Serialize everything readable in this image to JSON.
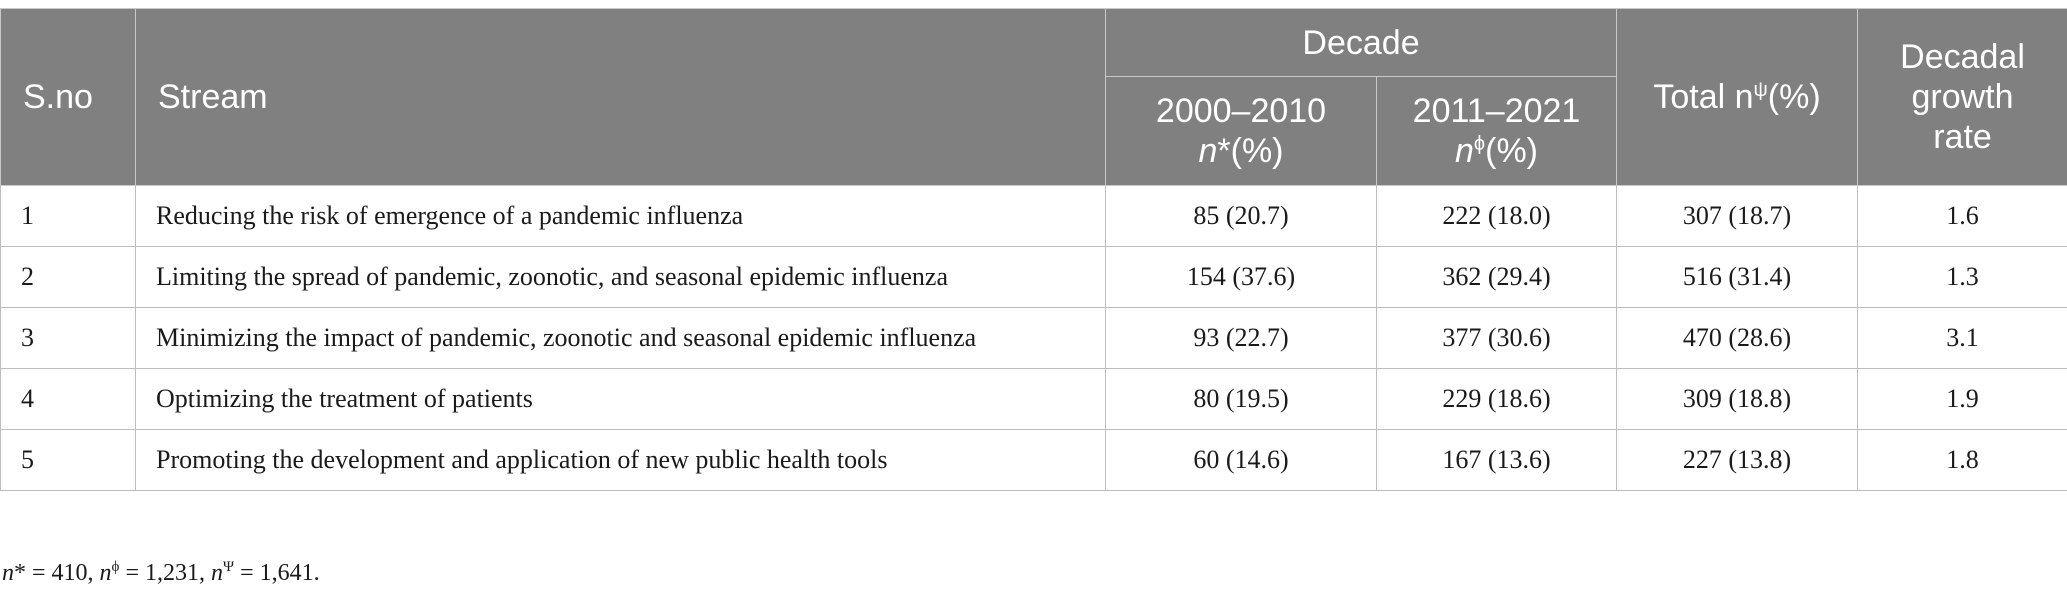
{
  "header": {
    "sno": "S.no",
    "stream": "Stream",
    "decade": "Decade",
    "decade1_range": "2000–2010",
    "decade1_n": "n",
    "decade1_sym": "*",
    "decade1_pct": "(%)",
    "decade2_range": "2011–2021",
    "decade2_n": "n",
    "decade2_sym": "ϕ",
    "decade2_pct": "(%)",
    "total_prefix": "Total n",
    "total_sym": "ψ",
    "total_pct": "(%)",
    "rate": "Decadal growth rate"
  },
  "rows": [
    {
      "sno": "1",
      "stream": "Reducing the risk of emergence of a pandemic influenza",
      "d1": "85 (20.7)",
      "d2": "222 (18.0)",
      "total": "307 (18.7)",
      "rate": "1.6"
    },
    {
      "sno": "2",
      "stream": "Limiting the spread of pandemic, zoonotic, and seasonal epidemic influenza",
      "d1": "154 (37.6)",
      "d2": "362 (29.4)",
      "total": "516 (31.4)",
      "rate": "1.3"
    },
    {
      "sno": "3",
      "stream": "Minimizing the impact of pandemic, zoonotic and seasonal epidemic influenza",
      "d1": "93 (22.7)",
      "d2": "377 (30.6)",
      "total": "470 (28.6)",
      "rate": "3.1"
    },
    {
      "sno": "4",
      "stream": "Optimizing the treatment of patients",
      "d1": "80 (19.5)",
      "d2": "229 (18.6)",
      "total": "309 (18.8)",
      "rate": "1.9"
    },
    {
      "sno": "5",
      "stream": "Promoting the development and application of new public health tools",
      "d1": "60 (14.6)",
      "d2": "167 (13.6)",
      "total": "227 (13.8)",
      "rate": "1.8"
    }
  ],
  "footnote": {
    "n1_sym": "*",
    "n1_val": " = 410, ",
    "n2_sym": "ϕ",
    "n2_val": " = 1,231, ",
    "n3_sym": "Ψ",
    "n3_val": " = 1,641."
  }
}
